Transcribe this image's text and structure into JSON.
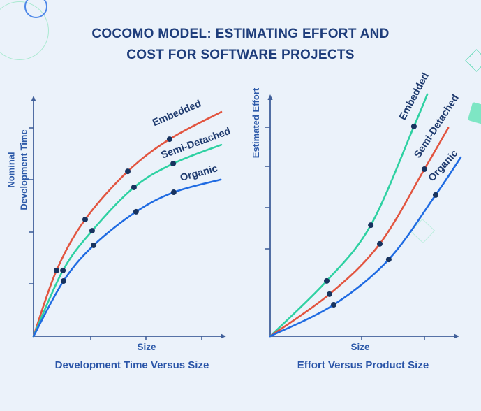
{
  "page": {
    "title_line1": "COCOMO MODEL: ESTIMATING EFFORT AND",
    "title_line2": "COST FOR SOFTWARE PROJECTS",
    "background_color": "#ebf2fa",
    "title_color": "#1e3d7b"
  },
  "colors": {
    "embedded_red": "#e25540",
    "semi_detached_teal": "#2ed1a2",
    "organic_blue": "#1f6be2",
    "axis": "#41609a",
    "data_point": "#17335f",
    "series_label_text": "#1e3a6e",
    "caption_text": "#2a55a8"
  },
  "decor": [
    {
      "name": "teal-circle-outline",
      "color": "#abe9d1"
    },
    {
      "name": "blue-circle-outline",
      "color": "#4d87e8"
    },
    {
      "name": "teal-diamond-outline",
      "color": "#5fd9b4"
    },
    {
      "name": "mint-filled-square",
      "color": "#7ee6c4"
    },
    {
      "name": "faint-teal-diamond-outline",
      "color": "#bceede"
    }
  ],
  "chart_data": [
    {
      "type": "line",
      "title": "Development Time Versus Size",
      "xlabel": "Size",
      "ylabel": "Nominal Development Time",
      "ylabel_lines": [
        "Nominal",
        "Development Time"
      ],
      "xlim": [
        0,
        100
      ],
      "ylim": [
        0,
        100
      ],
      "grid": false,
      "legend_position": "labels-along-curves",
      "curve_shape": "concave-increasing",
      "series": [
        {
          "name": "Embedded",
          "color": "#e25540",
          "x": [
            0,
            12.2,
            27.4,
            50.0,
            72.2,
            99.6
          ],
          "y": [
            0,
            28.0,
            49.7,
            70.2,
            83.9,
            95.5
          ],
          "marker_indices": [
            1,
            2,
            3,
            4
          ]
        },
        {
          "name": "Semi-Detached",
          "color": "#2ed1a2",
          "x": [
            0,
            15.6,
            31.1,
            53.3,
            74.1,
            99.6
          ],
          "y": [
            0,
            28.0,
            44.9,
            63.4,
            73.5,
            81.5
          ],
          "marker_indices": [
            1,
            2,
            3,
            4
          ]
        },
        {
          "name": "Organic",
          "color": "#1f6be2",
          "x": [
            0,
            15.9,
            31.9,
            54.4,
            74.4,
            99.3
          ],
          "y": [
            0,
            23.5,
            38.7,
            53.0,
            61.3,
            66.7
          ],
          "marker_indices": [
            1,
            2,
            3,
            4
          ]
        }
      ]
    },
    {
      "type": "line",
      "title": "Effort Versus Product Size",
      "xlabel": "Size",
      "ylabel": "Estimated Effort",
      "ylabel_lines": [
        "Estimated Effort"
      ],
      "xlim": [
        0,
        105
      ],
      "ylim": [
        0,
        105
      ],
      "grid": false,
      "legend_position": "labels-along-curves",
      "curve_shape": "convex-increasing",
      "series": [
        {
          "name": "Embedded",
          "color": "#2ed1a2",
          "x": [
            0,
            30.8,
            54.8,
            78.3,
            85.6
          ],
          "y": [
            0,
            23.4,
            47.0,
            88.8,
            102.4
          ],
          "marker_indices": [
            1,
            2,
            3
          ]
        },
        {
          "name": "Semi-Detached",
          "color": "#e25540",
          "x": [
            0,
            32.3,
            59.7,
            84.0,
            97.0
          ],
          "y": [
            0,
            17.8,
            39.1,
            70.7,
            88.2
          ],
          "marker_indices": [
            1,
            2,
            3
          ]
        },
        {
          "name": "Organic",
          "color": "#1f6be2",
          "x": [
            0,
            34.6,
            64.6,
            90.1,
            103.8
          ],
          "y": [
            0,
            13.3,
            32.5,
            59.8,
            75.7
          ],
          "marker_indices": [
            1,
            2,
            3
          ]
        }
      ]
    }
  ]
}
